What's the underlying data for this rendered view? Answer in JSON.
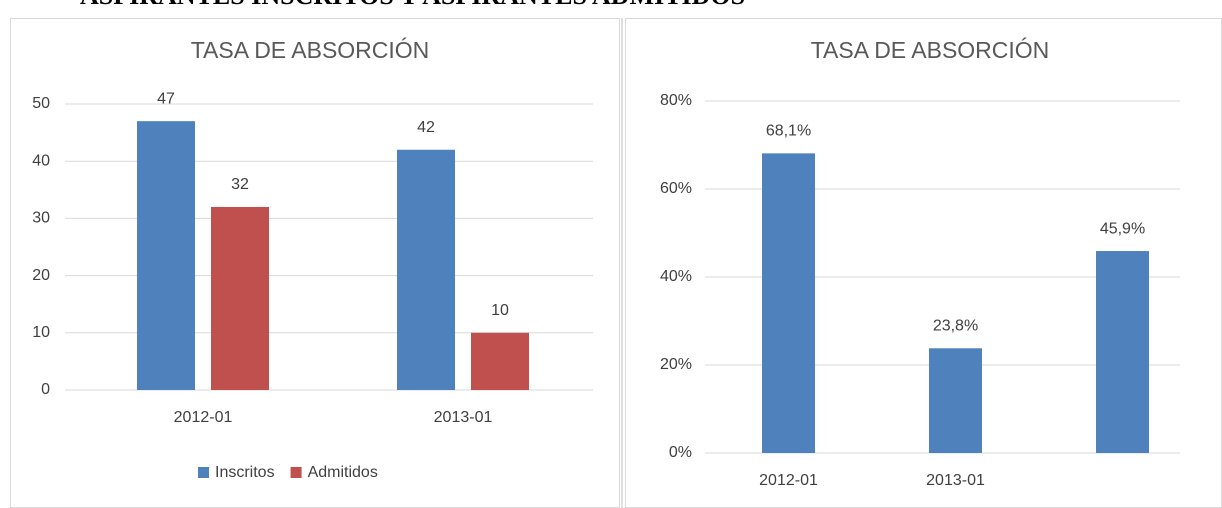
{
  "page_title": "ASPIRANTES INSCRITOS Y ASPIRANTES ADMITIDOS",
  "chart_data": [
    {
      "type": "bar",
      "title": "TASA DE ABSORCIÓN",
      "categories": [
        "2012-01",
        "2013-01"
      ],
      "series": [
        {
          "name": "Inscritos",
          "color": "#4f81bd",
          "values": [
            47,
            42
          ]
        },
        {
          "name": "Admitidos",
          "color": "#c0504d",
          "values": [
            32,
            10
          ]
        }
      ],
      "ylim": [
        0,
        50
      ],
      "yticks": [
        0,
        10,
        20,
        30,
        40,
        50
      ],
      "grid": true,
      "legend": "bottom"
    },
    {
      "type": "bar",
      "title": "TASA DE ABSORCIÓN",
      "categories": [
        "2012-01",
        "2013-01",
        null
      ],
      "series": [
        {
          "color": "#4f81bd",
          "values": [
            68.1,
            23.8,
            45.9
          ],
          "value_labels": [
            "68,1%",
            "23,8%",
            "45,9%"
          ]
        }
      ],
      "ylim": [
        0,
        80
      ],
      "yticks": [
        {
          "value": 0,
          "label": "0%"
        },
        {
          "value": 20,
          "label": "20%"
        },
        {
          "value": 40,
          "label": "40%"
        },
        {
          "value": 60,
          "label": "60%"
        },
        {
          "value": 80,
          "label": "80%"
        }
      ],
      "grid": true
    }
  ]
}
